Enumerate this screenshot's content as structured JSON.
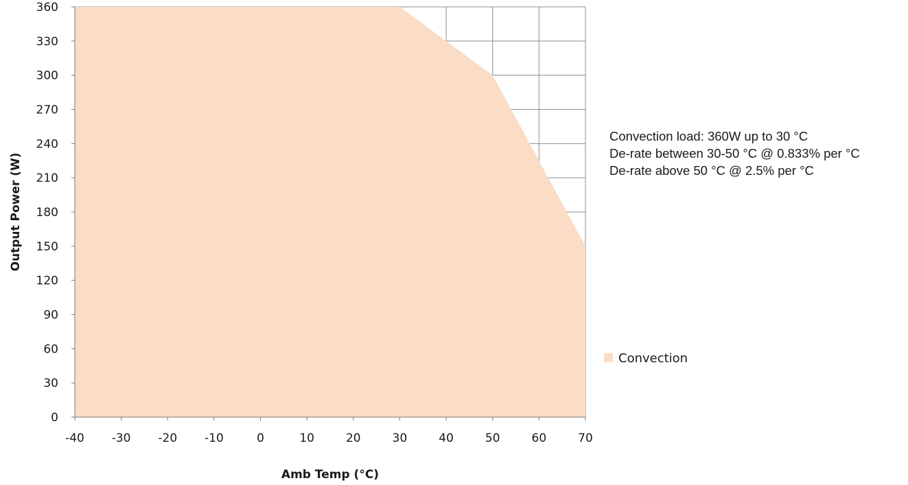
{
  "chart_data": {
    "type": "area",
    "title": "",
    "xlabel": "Amb Temp (°C)",
    "ylabel": "Output Power (W)",
    "xlim": [
      -40,
      70
    ],
    "ylim": [
      0,
      360
    ],
    "xticks": [
      "-40",
      "-30",
      "-20",
      "-10",
      "0",
      "10",
      "20",
      "30",
      "40",
      "50",
      "60",
      "70"
    ],
    "yticks": [
      "0",
      "30",
      "60",
      "90",
      "120",
      "150",
      "180",
      "210",
      "240",
      "270",
      "300",
      "330",
      "360"
    ],
    "grid": true,
    "legend": "right",
    "series": [
      {
        "name": "Convection",
        "color": "#fbdcc4",
        "x": [
          -40,
          30,
          40,
          50,
          60,
          70
        ],
        "y": [
          360,
          360,
          330,
          300,
          225,
          150
        ]
      }
    ],
    "annotations": [
      "Convection load: 360W up to 30 °C",
      "De-rate between 30-50 °C @ 0.833% per °C",
      "De-rate above 50 °C @ 2.5% per °C"
    ]
  }
}
